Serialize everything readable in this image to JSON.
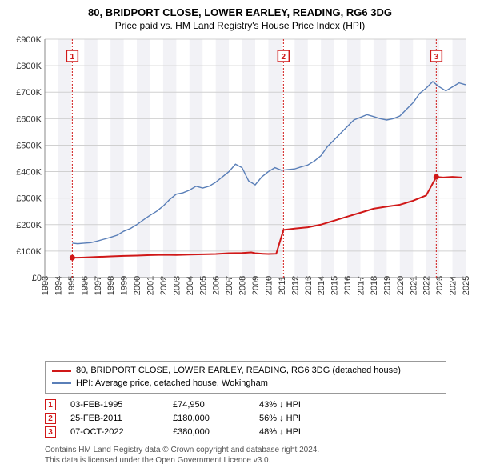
{
  "title": "80, BRIDPORT CLOSE, LOWER EARLEY, READING, RG6 3DG",
  "subtitle": "Price paid vs. HM Land Registry's House Price Index (HPI)",
  "chart": {
    "type": "line",
    "plot_bg": "#ffffff",
    "band_bg": "#f1f1f6",
    "grid_color": "#d0d0d0",
    "axis_color": "#888888",
    "ylabel_prefix": "£",
    "ylim": [
      0,
      900000
    ],
    "ytick_step": 100000,
    "yticks": [
      "£0",
      "£100K",
      "£200K",
      "£300K",
      "£400K",
      "£500K",
      "£600K",
      "£700K",
      "£800K",
      "£900K"
    ],
    "x_years": [
      1993,
      1994,
      1995,
      1996,
      1997,
      1998,
      1999,
      2000,
      2001,
      2002,
      2003,
      2004,
      2005,
      2006,
      2007,
      2008,
      2009,
      2010,
      2011,
      2012,
      2013,
      2014,
      2015,
      2016,
      2017,
      2018,
      2019,
      2020,
      2021,
      2022,
      2023,
      2024,
      2025
    ],
    "series": [
      {
        "name": "price_paid",
        "color": "#d01818",
        "width": 2,
        "points": [
          [
            1995.09,
            74950
          ],
          [
            1995.5,
            75000
          ],
          [
            1996,
            76000
          ],
          [
            1997,
            78000
          ],
          [
            1998,
            80000
          ],
          [
            1999,
            82000
          ],
          [
            2000,
            83000
          ],
          [
            2001,
            85000
          ],
          [
            2002,
            86000
          ],
          [
            2003,
            85500
          ],
          [
            2004,
            87000
          ],
          [
            2005,
            88000
          ],
          [
            2006,
            89000
          ],
          [
            2007,
            92000
          ],
          [
            2008,
            93000
          ],
          [
            2008.7,
            95000
          ],
          [
            2009,
            92000
          ],
          [
            2009.6,
            90000
          ],
          [
            2010,
            89000
          ],
          [
            2010.6,
            90000
          ],
          [
            2011.15,
            180000
          ],
          [
            2011.5,
            182000
          ],
          [
            2012,
            185000
          ],
          [
            2013,
            190000
          ],
          [
            2014,
            200000
          ],
          [
            2015,
            215000
          ],
          [
            2016,
            230000
          ],
          [
            2017,
            245000
          ],
          [
            2018,
            260000
          ],
          [
            2019,
            268000
          ],
          [
            2020,
            275000
          ],
          [
            2021,
            290000
          ],
          [
            2022,
            310000
          ],
          [
            2022.77,
            380000
          ],
          [
            2023.3,
            378000
          ],
          [
            2024,
            380000
          ],
          [
            2024.7,
            378000
          ]
        ],
        "start_marker": [
          1995.09,
          74950
        ],
        "end_marker": [
          2022.77,
          380000
        ]
      },
      {
        "name": "hpi",
        "color": "#5a7fb8",
        "width": 1.4,
        "points": [
          [
            1995.09,
            130000
          ],
          [
            1995.5,
            128000
          ],
          [
            1996,
            130000
          ],
          [
            1996.5,
            132000
          ],
          [
            1997,
            138000
          ],
          [
            1997.5,
            145000
          ],
          [
            1998,
            152000
          ],
          [
            1998.5,
            160000
          ],
          [
            1999,
            175000
          ],
          [
            1999.5,
            185000
          ],
          [
            2000,
            200000
          ],
          [
            2000.5,
            218000
          ],
          [
            2001,
            235000
          ],
          [
            2001.5,
            250000
          ],
          [
            2002,
            270000
          ],
          [
            2002.5,
            295000
          ],
          [
            2003,
            315000
          ],
          [
            2003.5,
            320000
          ],
          [
            2004,
            330000
          ],
          [
            2004.5,
            345000
          ],
          [
            2005,
            338000
          ],
          [
            2005.5,
            345000
          ],
          [
            2006,
            360000
          ],
          [
            2006.5,
            380000
          ],
          [
            2007,
            400000
          ],
          [
            2007.5,
            428000
          ],
          [
            2008,
            415000
          ],
          [
            2008.5,
            365000
          ],
          [
            2009,
            350000
          ],
          [
            2009.5,
            380000
          ],
          [
            2010,
            400000
          ],
          [
            2010.5,
            415000
          ],
          [
            2011,
            405000
          ],
          [
            2011.5,
            408000
          ],
          [
            2012,
            410000
          ],
          [
            2012.5,
            418000
          ],
          [
            2013,
            425000
          ],
          [
            2013.5,
            440000
          ],
          [
            2014,
            460000
          ],
          [
            2014.5,
            495000
          ],
          [
            2015,
            520000
          ],
          [
            2015.5,
            545000
          ],
          [
            2016,
            570000
          ],
          [
            2016.5,
            595000
          ],
          [
            2017,
            605000
          ],
          [
            2017.5,
            615000
          ],
          [
            2018,
            608000
          ],
          [
            2018.5,
            600000
          ],
          [
            2019,
            595000
          ],
          [
            2019.5,
            600000
          ],
          [
            2020,
            610000
          ],
          [
            2020.5,
            635000
          ],
          [
            2021,
            660000
          ],
          [
            2021.5,
            695000
          ],
          [
            2022,
            715000
          ],
          [
            2022.5,
            740000
          ],
          [
            2023,
            720000
          ],
          [
            2023.5,
            705000
          ],
          [
            2024,
            720000
          ],
          [
            2024.5,
            735000
          ],
          [
            2025,
            728000
          ]
        ]
      }
    ],
    "markers": [
      {
        "n": "1",
        "year": 1995.09,
        "color": "#d01818"
      },
      {
        "n": "2",
        "year": 2011.15,
        "color": "#d01818"
      },
      {
        "n": "3",
        "year": 2022.77,
        "color": "#d01818"
      }
    ]
  },
  "legend": {
    "items": [
      {
        "color": "#d01818",
        "label": "80, BRIDPORT CLOSE, LOWER EARLEY, READING, RG6 3DG (detached house)"
      },
      {
        "color": "#5a7fb8",
        "label": "HPI: Average price, detached house, Wokingham"
      }
    ]
  },
  "sales": [
    {
      "n": "1",
      "date": "03-FEB-1995",
      "price": "£74,950",
      "diff": "43% ↓ HPI",
      "color": "#d01818"
    },
    {
      "n": "2",
      "date": "25-FEB-2011",
      "price": "£180,000",
      "diff": "56% ↓ HPI",
      "color": "#d01818"
    },
    {
      "n": "3",
      "date": "07-OCT-2022",
      "price": "£380,000",
      "diff": "48% ↓ HPI",
      "color": "#d01818"
    }
  ],
  "footer": {
    "line1": "Contains HM Land Registry data © Crown copyright and database right 2024.",
    "line2": "This data is licensed under the Open Government Licence v3.0."
  }
}
